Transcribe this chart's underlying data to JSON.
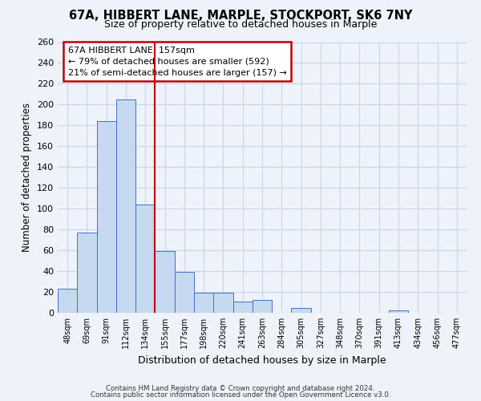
{
  "title": "67A, HIBBERT LANE, MARPLE, STOCKPORT, SK6 7NY",
  "subtitle": "Size of property relative to detached houses in Marple",
  "xlabel": "Distribution of detached houses by size in Marple",
  "ylabel": "Number of detached properties",
  "bin_labels": [
    "48sqm",
    "69sqm",
    "91sqm",
    "112sqm",
    "134sqm",
    "155sqm",
    "177sqm",
    "198sqm",
    "220sqm",
    "241sqm",
    "263sqm",
    "284sqm",
    "305sqm",
    "327sqm",
    "348sqm",
    "370sqm",
    "391sqm",
    "413sqm",
    "434sqm",
    "456sqm",
    "477sqm"
  ],
  "bar_heights": [
    23,
    77,
    184,
    205,
    104,
    59,
    39,
    19,
    19,
    11,
    12,
    0,
    5,
    0,
    0,
    0,
    0,
    2,
    0,
    0,
    0
  ],
  "bar_color": "#c6d9f0",
  "bar_edge_color": "#4472c4",
  "vline_x": 5,
  "vline_color": "#c00000",
  "ylim": [
    0,
    260
  ],
  "yticks": [
    0,
    20,
    40,
    60,
    80,
    100,
    120,
    140,
    160,
    180,
    200,
    220,
    240,
    260
  ],
  "annotation_title": "67A HIBBERT LANE: 157sqm",
  "annotation_line1": "← 79% of detached houses are smaller (592)",
  "annotation_line2": "21% of semi-detached houses are larger (157) →",
  "annotation_box_color": "#ffffff",
  "annotation_box_edge": "#c00000",
  "footer1": "Contains HM Land Registry data © Crown copyright and database right 2024.",
  "footer2": "Contains public sector information licensed under the Open Government Licence v3.0.",
  "bg_color": "#eef2f9",
  "grid_color": "#c8d8ea"
}
